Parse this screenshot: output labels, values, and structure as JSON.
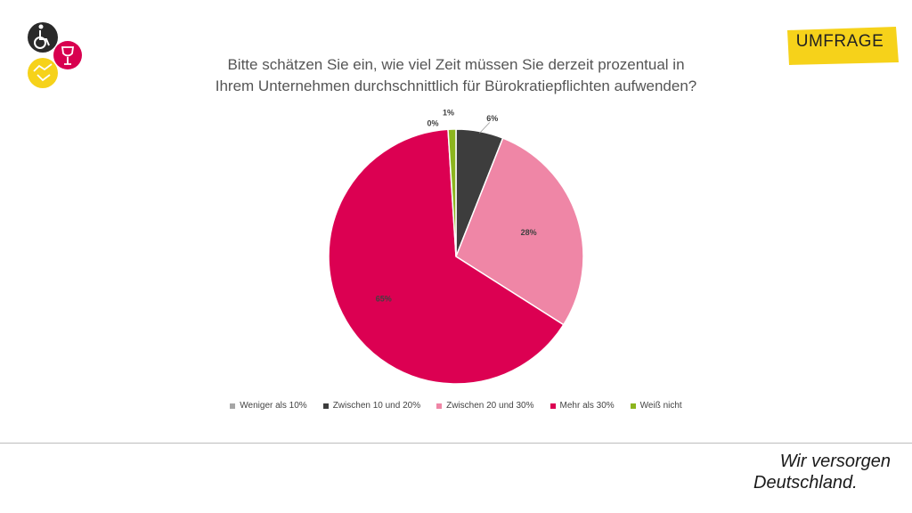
{
  "header": {
    "badge_label": "UMFRAGE",
    "badge_color": "#f6d21a"
  },
  "footer": {
    "slogan_line1": "Wir versorgen",
    "slogan_line2": "Deutschland."
  },
  "logo": {
    "icon_names": [
      "wheelchair-icon",
      "wine-glass-icon",
      "handshake-icon"
    ],
    "colors": [
      "#2a2a2a",
      "#d8004f",
      "#f6d21a"
    ]
  },
  "chart_data": {
    "type": "pie",
    "title": "Bitte schätzen Sie ein, wie viel Zeit müssen Sie derzeit prozentual in Ihrem Unternehmen durchschnittlich für Bürokratiepflichten aufwenden?",
    "start_angle": "12 o'clock, clockwise",
    "legend_position": "bottom",
    "slices": [
      {
        "label": "Weniger als 10%",
        "value": 0,
        "display": "0%",
        "color": "#a6a6a6"
      },
      {
        "label": "Zwischen 10 und 20%",
        "value": 6,
        "display": "6%",
        "color": "#3d3d3d"
      },
      {
        "label": "Zwischen 20 und 30%",
        "value": 28,
        "display": "28%",
        "color": "#ef86a6"
      },
      {
        "label": "Mehr als 30%",
        "value": 65,
        "display": "65%",
        "color": "#dc0052"
      },
      {
        "label": "Weiß nicht",
        "value": 1,
        "display": "1%",
        "color": "#8cb51e"
      }
    ]
  }
}
